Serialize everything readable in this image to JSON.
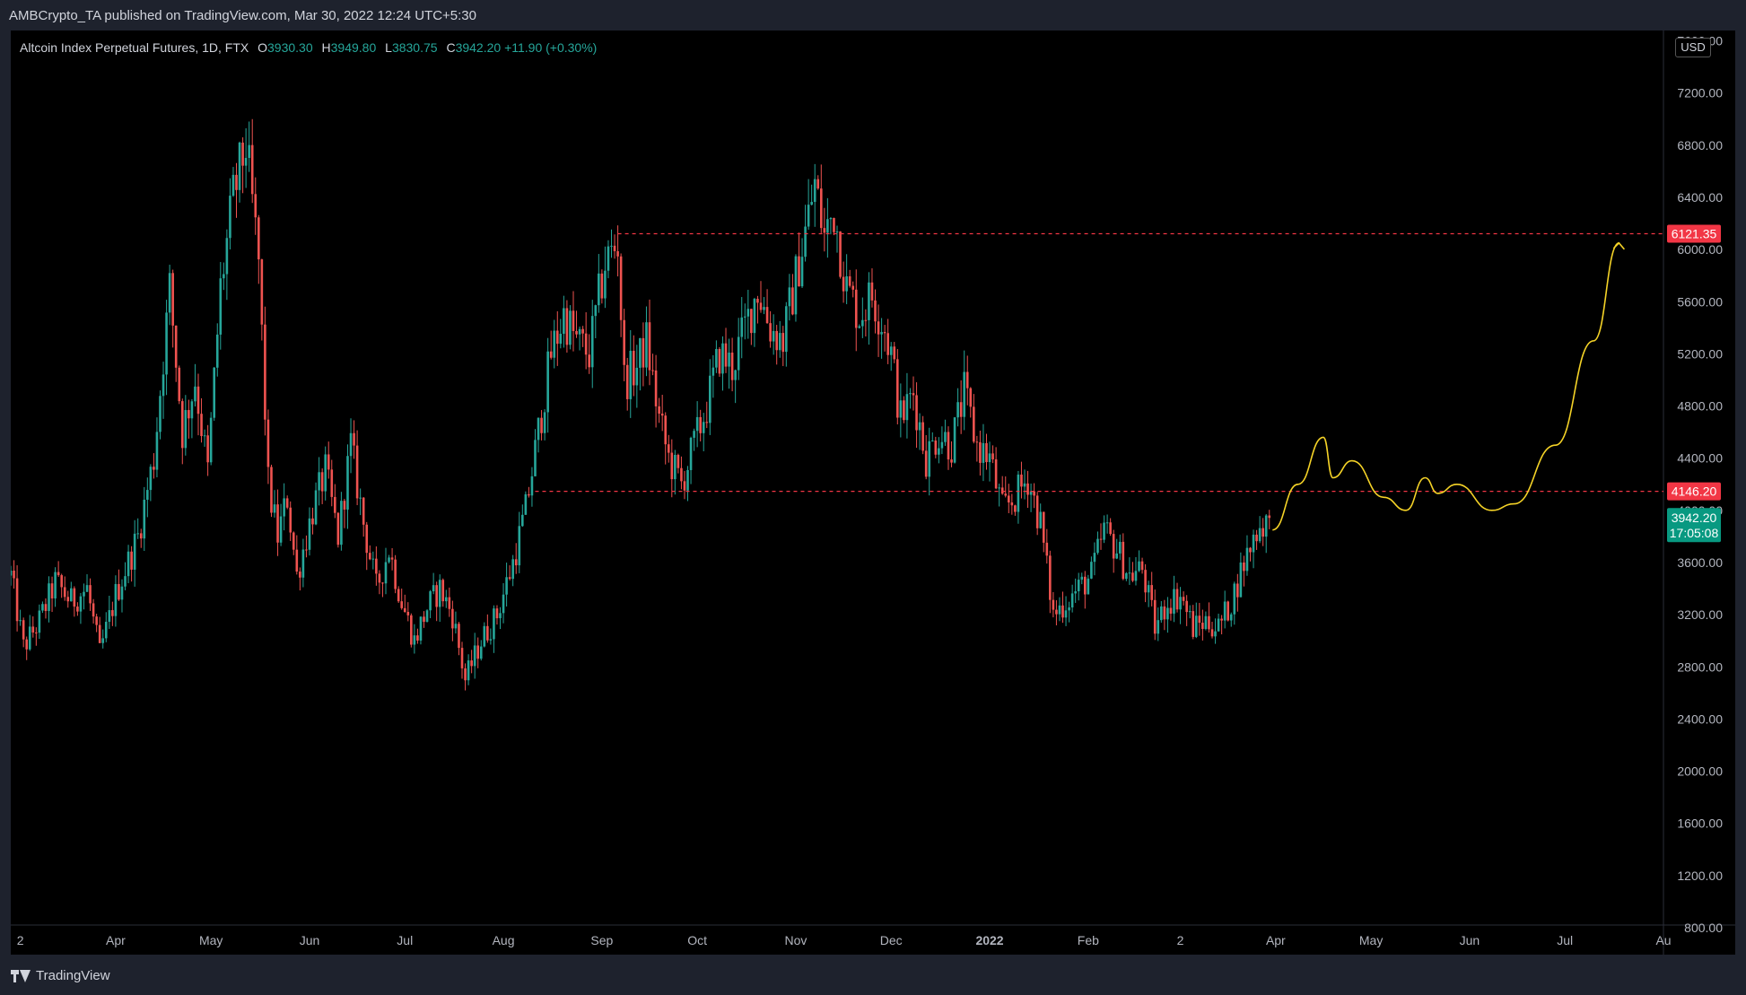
{
  "header": {
    "publisher_line": "AMBCrypto_TA published on TradingView.com, Mar 30, 2022 12:24 UTC+5:30"
  },
  "legend": {
    "symbol": "Altcoin Index Perpetual Futures, 1D, FTX",
    "open_label": "O",
    "open": "3930.30",
    "high_label": "H",
    "high": "3949.80",
    "low_label": "L",
    "low": "3830.75",
    "close_label": "C",
    "close": "3942.20",
    "change": "+11.90 (+0.30%)"
  },
  "currency": "USD",
  "footer": {
    "brand": "TradingView"
  },
  "colors": {
    "up": "#26a69a",
    "down": "#ef5350",
    "level": "#f23645",
    "projection": "#f5d327",
    "last": "#089981",
    "axis_text": "#b2b5be"
  },
  "chart_data": {
    "type": "candlestick",
    "title": "",
    "y_scale": "linear",
    "ylim": [
      800,
      7700
    ],
    "y_ticks": [
      "7600.00",
      "7200.00",
      "6800.00",
      "6400.00",
      "6000.00",
      "5600.00",
      "5200.00",
      "4800.00",
      "4400.00",
      "4000.00",
      "3600.00",
      "3200.00",
      "2800.00",
      "2400.00",
      "2000.00",
      "1600.00",
      "1200.00",
      "800.00"
    ],
    "x_tick_labels": [
      "2",
      "Apr",
      "May",
      "Jun",
      "Jul",
      "Aug",
      "Sep",
      "Oct",
      "Nov",
      "Dec",
      "2022",
      "Feb",
      "2",
      "Apr",
      "May",
      "Jun",
      "Jul",
      "Au"
    ],
    "x_tick_dates": [
      "2021-03-02",
      "2021-04-01",
      "2021-05-01",
      "2021-06-01",
      "2021-07-01",
      "2021-08-01",
      "2021-09-01",
      "2021-10-01",
      "2021-11-01",
      "2021-12-01",
      "2022-01-01",
      "2022-02-01",
      "2022-03-02",
      "2022-04-01",
      "2022-05-01",
      "2022-06-01",
      "2022-07-01",
      "2022-08-01"
    ],
    "x_start": "2021-02-27",
    "x_end": "2022-08-01",
    "levels": [
      {
        "label": "6121.35",
        "value": 6121.35,
        "from": "2021-09-06"
      },
      {
        "label": "4146.20",
        "value": 4146.2,
        "from": "2021-08-11"
      }
    ],
    "last_price": {
      "label": "3942.20",
      "value": 3942.2,
      "countdown": "17:05:08"
    },
    "close_path": [
      [
        "2021-02-27",
        3500
      ],
      [
        "2021-03-03",
        2950
      ],
      [
        "2021-03-08",
        3150
      ],
      [
        "2021-03-13",
        3450
      ],
      [
        "2021-03-18",
        3300
      ],
      [
        "2021-03-23",
        3400
      ],
      [
        "2021-03-27",
        2900
      ],
      [
        "2021-04-01",
        3350
      ],
      [
        "2021-04-08",
        3800
      ],
      [
        "2021-04-13",
        4400
      ],
      [
        "2021-04-18",
        5700
      ],
      [
        "2021-04-22",
        4600
      ],
      [
        "2021-04-26",
        5000
      ],
      [
        "2021-04-30",
        4300
      ],
      [
        "2021-05-04",
        5700
      ],
      [
        "2021-05-08",
        6400
      ],
      [
        "2021-05-12",
        6800
      ],
      [
        "2021-05-16",
        5900
      ],
      [
        "2021-05-19",
        4200
      ],
      [
        "2021-05-22",
        3800
      ],
      [
        "2021-05-25",
        4100
      ],
      [
        "2021-05-28",
        3500
      ],
      [
        "2021-06-02",
        4000
      ],
      [
        "2021-06-06",
        4300
      ],
      [
        "2021-06-10",
        3800
      ],
      [
        "2021-06-14",
        4500
      ],
      [
        "2021-06-18",
        3900
      ],
      [
        "2021-06-22",
        3400
      ],
      [
        "2021-06-26",
        3700
      ],
      [
        "2021-06-30",
        3300
      ],
      [
        "2021-07-04",
        3000
      ],
      [
        "2021-07-08",
        3250
      ],
      [
        "2021-07-12",
        3400
      ],
      [
        "2021-07-16",
        3200
      ],
      [
        "2021-07-20",
        2700
      ],
      [
        "2021-07-25",
        3000
      ],
      [
        "2021-07-30",
        3200
      ],
      [
        "2021-08-04",
        3600
      ],
      [
        "2021-08-08",
        4000
      ],
      [
        "2021-08-12",
        4600
      ],
      [
        "2021-08-16",
        5200
      ],
      [
        "2021-08-20",
        5500
      ],
      [
        "2021-08-24",
        5300
      ],
      [
        "2021-08-28",
        5200
      ],
      [
        "2021-09-02",
        5900
      ],
      [
        "2021-09-06",
        6050
      ],
      [
        "2021-09-08",
        5000
      ],
      [
        "2021-09-12",
        5100
      ],
      [
        "2021-09-15",
        5300
      ],
      [
        "2021-09-19",
        4700
      ],
      [
        "2021-09-22",
        4400
      ],
      [
        "2021-09-26",
        4200
      ],
      [
        "2021-09-30",
        4500
      ],
      [
        "2021-10-04",
        4800
      ],
      [
        "2021-10-08",
        5200
      ],
      [
        "2021-10-12",
        5100
      ],
      [
        "2021-10-16",
        5400
      ],
      [
        "2021-10-20",
        5700
      ],
      [
        "2021-10-24",
        5400
      ],
      [
        "2021-10-28",
        5300
      ],
      [
        "2021-11-02",
        5900
      ],
      [
        "2021-11-07",
        6500
      ],
      [
        "2021-11-10",
        6100
      ],
      [
        "2021-11-13",
        6300
      ],
      [
        "2021-11-17",
        5700
      ],
      [
        "2021-11-21",
        5500
      ],
      [
        "2021-11-25",
        5650
      ],
      [
        "2021-11-29",
        5400
      ],
      [
        "2021-12-01",
        5200
      ],
      [
        "2021-12-04",
        4700
      ],
      [
        "2021-12-08",
        4900
      ],
      [
        "2021-12-12",
        4400
      ],
      [
        "2021-12-16",
        4600
      ],
      [
        "2021-12-20",
        4500
      ],
      [
        "2021-12-24",
        4900
      ],
      [
        "2021-12-28",
        4500
      ],
      [
        "2022-01-01",
        4400
      ],
      [
        "2022-01-05",
        4000
      ],
      [
        "2022-01-09",
        4100
      ],
      [
        "2022-01-13",
        4250
      ],
      [
        "2022-01-17",
        3900
      ],
      [
        "2022-01-21",
        3200
      ],
      [
        "2022-01-25",
        3300
      ],
      [
        "2022-01-29",
        3400
      ],
      [
        "2022-02-02",
        3500
      ],
      [
        "2022-02-06",
        3850
      ],
      [
        "2022-02-10",
        3700
      ],
      [
        "2022-02-14",
        3500
      ],
      [
        "2022-02-18",
        3550
      ],
      [
        "2022-02-22",
        3100
      ],
      [
        "2022-02-26",
        3300
      ],
      [
        "2022-03-02",
        3350
      ],
      [
        "2022-03-06",
        3100
      ],
      [
        "2022-03-10",
        3150
      ],
      [
        "2022-03-14",
        3100
      ],
      [
        "2022-03-18",
        3300
      ],
      [
        "2022-03-22",
        3600
      ],
      [
        "2022-03-26",
        3850
      ],
      [
        "2022-03-30",
        3942
      ]
    ],
    "projection_path": [
      [
        "2022-03-31",
        3850
      ],
      [
        "2022-04-08",
        4200
      ],
      [
        "2022-04-16",
        4560
      ],
      [
        "2022-04-19",
        4250
      ],
      [
        "2022-04-25",
        4380
      ],
      [
        "2022-05-05",
        4100
      ],
      [
        "2022-05-12",
        4000
      ],
      [
        "2022-05-18",
        4250
      ],
      [
        "2022-05-22",
        4130
      ],
      [
        "2022-05-28",
        4200
      ],
      [
        "2022-06-08",
        4000
      ],
      [
        "2022-06-15",
        4050
      ],
      [
        "2022-06-28",
        4500
      ],
      [
        "2022-07-10",
        5300
      ],
      [
        "2022-07-18",
        6050
      ]
    ]
  }
}
